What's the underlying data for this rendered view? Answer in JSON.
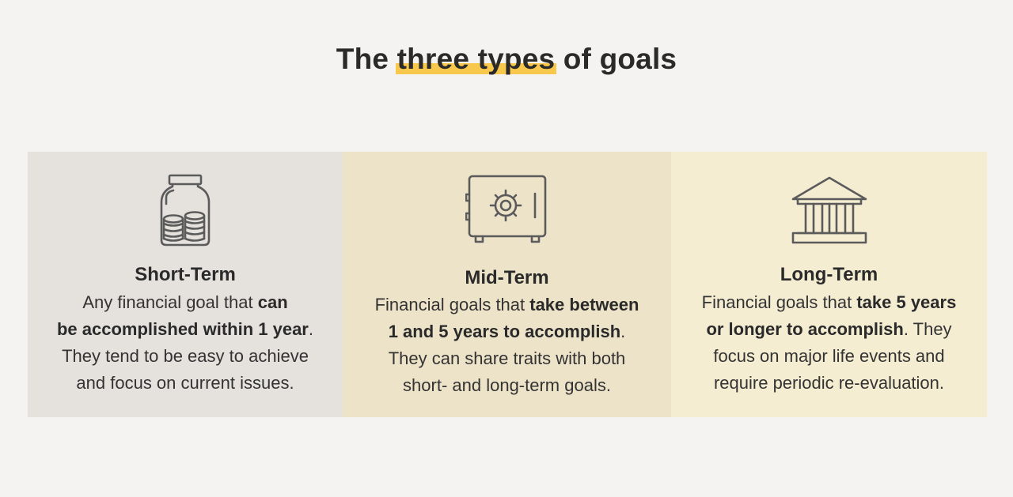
{
  "title": {
    "prefix": "The ",
    "highlight": "three types",
    "suffix": " of goals"
  },
  "colors": {
    "background": "#f4f3f1",
    "highlight": "#f7c84c",
    "panel_short": "#e5e2dd",
    "panel_mid": "#ede3c8",
    "panel_long": "#f5edd2",
    "icon_stroke": "#5b5b5b"
  },
  "panels": [
    {
      "icon": "coin-jar-icon",
      "heading": "Short-Term",
      "lines": [
        {
          "normal": "Any financial goal that ",
          "bold": "can"
        },
        {
          "bold": "be accomplished within 1 year",
          "normal": "."
        },
        {
          "normal": "They tend to be easy to achieve"
        },
        {
          "normal": "and focus on current issues."
        }
      ]
    },
    {
      "icon": "safe-icon",
      "heading": "Mid-Term",
      "lines": [
        {
          "normal": "Financial goals that ",
          "bold": "take between"
        },
        {
          "bold": "1 and 5 years to accomplish",
          "normal": "."
        },
        {
          "normal": "They can share traits with both"
        },
        {
          "normal": "short- and long-term goals."
        }
      ]
    },
    {
      "icon": "bank-icon",
      "heading": "Long-Term",
      "lines": [
        {
          "normal": "Financial goals that ",
          "bold": "take 5 years"
        },
        {
          "bold": "or longer to accomplish",
          "normal": ". They"
        },
        {
          "normal": "focus on major life events and"
        },
        {
          "normal": "require periodic re-evaluation."
        }
      ]
    }
  ]
}
